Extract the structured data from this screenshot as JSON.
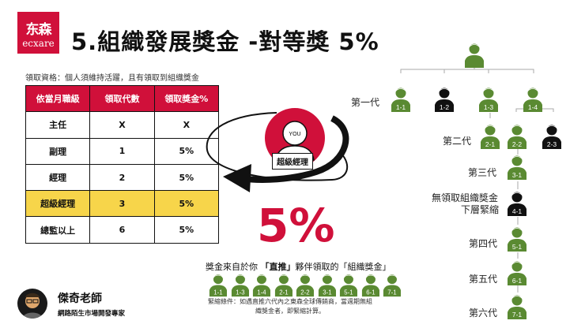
{
  "logo": {
    "cn": "东森",
    "en": "ecxare",
    "brand_color": "#d0103a"
  },
  "title": "5.組織發展獎金  -對等獎  5%",
  "qualification": "領取資格：個人須維持活躍，且有領取到組織獎金",
  "table": {
    "headers": [
      "依當月職級",
      "領取代數",
      "領取獎金%"
    ],
    "rows": [
      [
        "主任",
        "X",
        "X"
      ],
      [
        "副理",
        "1",
        "5%"
      ],
      [
        "經理",
        "2",
        "5%"
      ],
      [
        "超級經理",
        "3",
        "5%"
      ],
      [
        "總監以上",
        "6",
        "5%"
      ]
    ],
    "highlight_row": 3,
    "highlight_color": "#f7d54a"
  },
  "you": {
    "badge": "YOU",
    "label": "超級經理"
  },
  "big_percent": "5%",
  "tree": {
    "generation_labels": [
      "第一代",
      "第二代",
      "第三代",
      "無領取組織獎金",
      "下層緊縮",
      "第四代",
      "第五代",
      "第六代"
    ],
    "nodes": [
      {
        "id": "",
        "status": "active"
      },
      {
        "id": "1-1",
        "status": "active"
      },
      {
        "id": "1-2",
        "status": "inactive"
      },
      {
        "id": "1-3",
        "status": "active"
      },
      {
        "id": "1-4",
        "status": "active"
      },
      {
        "id": "2-1",
        "status": "active"
      },
      {
        "id": "2-2",
        "status": "active"
      },
      {
        "id": "2-3",
        "status": "inactive"
      },
      {
        "id": "3-1",
        "status": "active"
      },
      {
        "id": "4-1",
        "status": "inactive"
      },
      {
        "id": "5-1",
        "status": "active"
      },
      {
        "id": "6-1",
        "status": "active"
      },
      {
        "id": "7-1",
        "status": "active"
      }
    ],
    "active_color": "#5a8a32",
    "inactive_color": "#111111"
  },
  "source": {
    "text_pre": "獎金來自於你 ",
    "text_bold": "「直推」",
    "text_post": "夥伴領取的「組織獎金」",
    "nodes": [
      "1-1",
      "1-3",
      "1-4",
      "2-1",
      "2-2",
      "3-1",
      "5-1",
      "6-1",
      "7-1"
    ]
  },
  "note": "緊縮條件：如遇直推六代內之東森全球傳銷商，當週期無組織獎金者，即緊縮計算。",
  "presenter": {
    "name": "傑奇老師",
    "subtitle": "網路陌生市場開發專家"
  }
}
